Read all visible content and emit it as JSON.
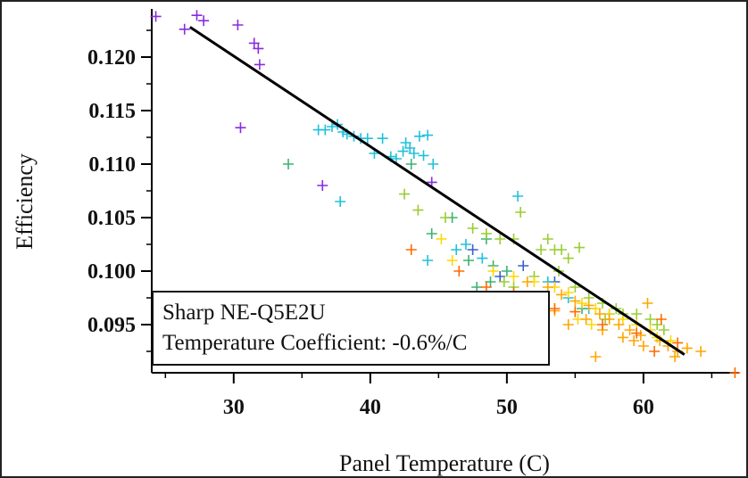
{
  "chart_data": {
    "type": "scatter",
    "xlabel": "Panel Temperature (C)",
    "ylabel": "Efficiency",
    "xlim": [
      24,
      67
    ],
    "ylim": [
      0.0905,
      0.1245
    ],
    "x_ticks": [
      30,
      40,
      50,
      60
    ],
    "y_ticks": [
      0.095,
      0.1,
      0.105,
      0.11,
      0.115,
      0.12
    ],
    "x_tick_labels": [
      "30",
      "40",
      "50",
      "60"
    ],
    "y_tick_labels": [
      "0.095",
      "0.100",
      "0.105",
      "0.110",
      "0.115",
      "0.120"
    ],
    "annotation": {
      "line1": "Sharp NE-Q5E2U",
      "line2": "Temperature Coefficient: -0.6%/C"
    },
    "fit_line": {
      "x": [
        26.8,
        63.0
      ],
      "y": [
        0.1228,
        0.0922
      ]
    },
    "series": [
      {
        "color": "#8a2be2",
        "points": [
          [
            24.3,
            0.1238
          ],
          [
            26.4,
            0.1226
          ],
          [
            27.3,
            0.1239
          ],
          [
            27.8,
            0.1234
          ],
          [
            30.3,
            0.123
          ],
          [
            31.5,
            0.1213
          ],
          [
            31.8,
            0.1208
          ],
          [
            31.9,
            0.1193
          ],
          [
            30.5,
            0.1134
          ],
          [
            36.5,
            0.108
          ],
          [
            44.5,
            0.1083
          ]
        ]
      },
      {
        "color": "#3a5fcd",
        "points": [
          [
            47.5,
            0.102
          ],
          [
            51.2,
            0.1005
          ],
          [
            49.5,
            0.0995
          ],
          [
            53.5,
            0.099
          ]
        ]
      },
      {
        "color": "#20c0dc",
        "points": [
          [
            36.2,
            0.1132
          ],
          [
            36.7,
            0.1132
          ],
          [
            37.2,
            0.1135
          ],
          [
            37.6,
            0.1137
          ],
          [
            38.0,
            0.113
          ],
          [
            38.3,
            0.1128
          ],
          [
            38.8,
            0.1126
          ],
          [
            39.3,
            0.1124
          ],
          [
            39.8,
            0.1124
          ],
          [
            40.3,
            0.111
          ],
          [
            40.9,
            0.1124
          ],
          [
            41.5,
            0.1107
          ],
          [
            41.9,
            0.1105
          ],
          [
            42.4,
            0.1112
          ],
          [
            42.6,
            0.112
          ],
          [
            42.9,
            0.1115
          ],
          [
            43.2,
            0.111
          ],
          [
            43.6,
            0.1126
          ],
          [
            43.9,
            0.1108
          ],
          [
            44.2,
            0.1127
          ],
          [
            44.6,
            0.11
          ],
          [
            37.8,
            0.1065
          ],
          [
            50.8,
            0.107
          ],
          [
            46.3,
            0.102
          ],
          [
            47.0,
            0.1025
          ],
          [
            44.2,
            0.101
          ],
          [
            48.2,
            0.1012
          ],
          [
            53.0,
            0.099
          ],
          [
            54.5,
            0.0975
          ],
          [
            56.0,
            0.0965
          ],
          [
            57.5,
            0.096
          ]
        ]
      },
      {
        "color": "#3cb371",
        "points": [
          [
            34.0,
            0.11
          ],
          [
            43.0,
            0.11
          ],
          [
            46.0,
            0.105
          ],
          [
            44.5,
            0.1035
          ],
          [
            48.5,
            0.103
          ],
          [
            49.0,
            0.1005
          ],
          [
            47.8,
            0.0985
          ],
          [
            50.0,
            0.1
          ],
          [
            48.8,
            0.099
          ],
          [
            47.2,
            0.101
          ],
          [
            55.5,
            0.0965
          ]
        ]
      },
      {
        "color": "#9acd32",
        "points": [
          [
            42.5,
            0.1072
          ],
          [
            43.5,
            0.1057
          ],
          [
            45.5,
            0.105
          ],
          [
            47.5,
            0.104
          ],
          [
            48.5,
            0.1035
          ],
          [
            49.5,
            0.103
          ],
          [
            50.5,
            0.103
          ],
          [
            51.0,
            0.1055
          ],
          [
            52.5,
            0.102
          ],
          [
            53.0,
            0.103
          ],
          [
            53.5,
            0.102
          ],
          [
            54.0,
            0.102
          ],
          [
            54.5,
            0.1012
          ],
          [
            55.3,
            0.1022
          ],
          [
            53.8,
            0.1
          ],
          [
            52.0,
            0.0995
          ],
          [
            55.0,
            0.0985
          ],
          [
            56.0,
            0.0975
          ],
          [
            57.0,
            0.097
          ],
          [
            58.0,
            0.0965
          ],
          [
            58.5,
            0.096
          ],
          [
            59.5,
            0.096
          ],
          [
            60.5,
            0.0955
          ],
          [
            61.0,
            0.095
          ],
          [
            61.5,
            0.0945
          ],
          [
            57.2,
            0.0955
          ],
          [
            49.8,
            0.099
          ],
          [
            50.5,
            0.0985
          ]
        ]
      },
      {
        "color": "#ffd700",
        "points": [
          [
            45.2,
            0.103
          ],
          [
            46.0,
            0.101
          ],
          [
            49.0,
            0.1
          ],
          [
            50.5,
            0.0995
          ],
          [
            52.0,
            0.099
          ],
          [
            53.5,
            0.0985
          ],
          [
            54.5,
            0.098
          ],
          [
            55.5,
            0.097
          ],
          [
            56.5,
            0.0965
          ],
          [
            57.5,
            0.096
          ],
          [
            58.5,
            0.0955
          ],
          [
            59.5,
            0.095
          ],
          [
            60.5,
            0.0945
          ],
          [
            61.0,
            0.0938
          ],
          [
            62.0,
            0.0935
          ],
          [
            52.5,
            0.0975
          ],
          [
            55.2,
            0.0955
          ],
          [
            56.2,
            0.095
          ]
        ]
      },
      {
        "color": "#ffa500",
        "points": [
          [
            51.5,
            0.099
          ],
          [
            53.0,
            0.0985
          ],
          [
            54.0,
            0.0978
          ],
          [
            55.0,
            0.0972
          ],
          [
            56.0,
            0.0968
          ],
          [
            56.8,
            0.096
          ],
          [
            57.5,
            0.0955
          ],
          [
            58.2,
            0.095
          ],
          [
            59.0,
            0.0945
          ],
          [
            59.8,
            0.094
          ],
          [
            60.3,
            0.097
          ],
          [
            61.2,
            0.0935
          ],
          [
            61.8,
            0.093
          ],
          [
            62.5,
            0.0925
          ],
          [
            63.2,
            0.0928
          ],
          [
            64.2,
            0.0925
          ],
          [
            62.3,
            0.092
          ],
          [
            60.0,
            0.093
          ],
          [
            57.0,
            0.0945
          ],
          [
            59.3,
            0.0935
          ],
          [
            56.5,
            0.092
          ],
          [
            54.5,
            0.095
          ],
          [
            58.5,
            0.0938
          ],
          [
            55.8,
            0.0955
          ],
          [
            53.5,
            0.0963
          ]
        ]
      },
      {
        "color": "#ff6a00",
        "points": [
          [
            43.0,
            0.102
          ],
          [
            46.5,
            0.1
          ],
          [
            48.5,
            0.0985
          ],
          [
            50.5,
            0.098
          ],
          [
            53.5,
            0.0965
          ],
          [
            55.0,
            0.0962
          ],
          [
            57.0,
            0.095
          ],
          [
            59.5,
            0.0942
          ],
          [
            61.3,
            0.0955
          ],
          [
            62.5,
            0.0933
          ],
          [
            66.7,
            0.0905
          ],
          [
            52.5,
            0.096
          ],
          [
            60.8,
            0.0925
          ]
        ]
      }
    ]
  }
}
